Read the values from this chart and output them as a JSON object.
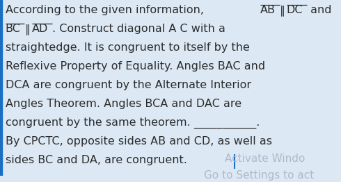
{
  "background_color": "#dce9f5",
  "text_color": "#2c2c2c",
  "watermark_color": "#b0b8c8",
  "font_size": 11.5,
  "watermark_font_size": 11.0,
  "line1_normal": "According to the given information, ",
  "line1_ab": "AB",
  "line1_mid": "∥",
  "line1_dc": "DC",
  "line1_end": " and",
  "line2_bc": "BC",
  "line2_mid": "∥",
  "line2_ad": "AD",
  "line2_end": ". Construct diagonal A C with a",
  "line3": "straightedge. It is congruent to itself by the",
  "line4": "Reflexive Property of Equality. Angles BAC and",
  "line5": "DCA are congruent by the Alternate Interior",
  "line6": "Angles Theorem. Angles BCA and DAC are",
  "line7": "congruent by the same theorem. ___________.",
  "line8": "By CPCTC, opposite sides AB and CD, as well as",
  "line9": "sides BC and DA, are congruent.",
  "watermark": "Activate Windo",
  "watermark2": "Go to Settings to act",
  "cursor_color": "#1a6fc4",
  "left_bar_color": "#1a6fc4"
}
